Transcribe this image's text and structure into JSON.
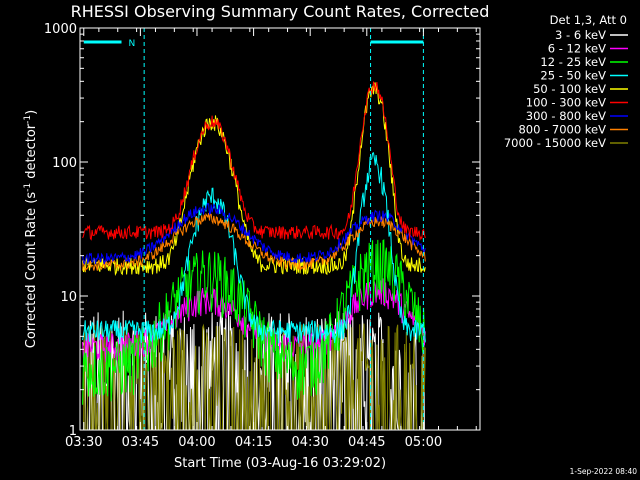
{
  "chart_data": {
    "type": "line",
    "title": "RHESSI Observing Summary Count Rates, Corrected",
    "xlabel": "Start Time (03-Aug-16 03:29:02)",
    "ylabel_main": "Corrected Count Rate (s",
    "ylabel_sup1": "-1",
    "ylabel_mid": " detector",
    "ylabel_sup2": "-1",
    "ylabel_end": ")",
    "y_scale": "log",
    "ylim": [
      1,
      1000
    ],
    "y_ticks": [
      "1",
      "10",
      "100",
      "1000"
    ],
    "x_range_min": [
      0,
      60
    ],
    "x_ticks": [
      {
        "label": "03:30",
        "min": 1
      },
      {
        "label": "03:45",
        "min": 16
      },
      {
        "label": "04:00",
        "min": 31
      },
      {
        "label": "04:15",
        "min": 46
      },
      {
        "label": "04:30",
        "min": 61
      },
      {
        "label": "04:45",
        "min": 76
      },
      {
        "label": "05:00",
        "min": 91
      }
    ],
    "x_max_min": 106,
    "timestamp": "1-Sep-2022 08:40",
    "legend_title": "Det 1,3, Att 0",
    "legend_position": "right",
    "flags": [
      {
        "label": "N",
        "start_min": 1,
        "end_min": 11,
        "color": "#00ffff"
      },
      {
        "label": "",
        "start_min": 77,
        "end_min": 91,
        "color": "#00ffff"
      }
    ],
    "markers_min": [
      17,
      77,
      91
    ],
    "series": [
      {
        "name": "3 - 6 keV",
        "color": "#ffffff",
        "base": 3,
        "peak1": 0,
        "peak2": 0,
        "noise": 1.6
      },
      {
        "name": "6 - 12 keV",
        "color": "#ff00ff",
        "base": 4.2,
        "peak1": 9.5,
        "peak2": 11,
        "noise": 0.25
      },
      {
        "name": "12 - 25 keV",
        "color": "#00ff00",
        "base": 3,
        "peak1": 15,
        "peak2": 18,
        "noise": 0.5
      },
      {
        "name": "25 - 50 keV",
        "color": "#00ffff",
        "base": 5.5,
        "peak1": 55,
        "peak2": 100,
        "noise": 0.2
      },
      {
        "name": "50 - 100 keV",
        "color": "#ffff00",
        "base": 17,
        "peak1": 200,
        "peak2": 350,
        "noise": 0.15
      },
      {
        "name": "100 - 300 keV",
        "color": "#ff0000",
        "base": 30,
        "peak1": 200,
        "peak2": 380,
        "noise": 0.12
      },
      {
        "name": "300 - 800 keV",
        "color": "#0000ff",
        "base": 19,
        "peak1": 45,
        "peak2": 40,
        "noise": 0.1
      },
      {
        "name": "800 - 7000 keV",
        "color": "#ff8000",
        "base": 17,
        "peak1": 38,
        "peak2": 36,
        "noise": 0.1
      },
      {
        "name": "7000 - 15000 keV",
        "color": "#808000",
        "base": 2.5,
        "peak1": 0,
        "peak2": 0,
        "noise": 1.5
      }
    ]
  }
}
